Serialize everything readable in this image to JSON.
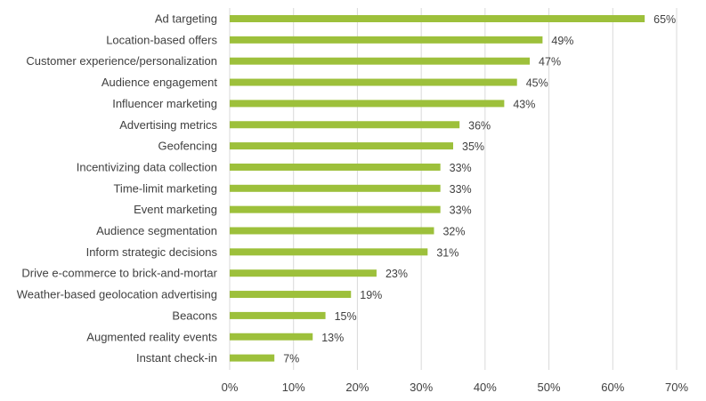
{
  "chart_data": {
    "type": "bar",
    "orientation": "horizontal",
    "title": "",
    "xlabel": "",
    "ylabel": "",
    "categories": [
      "Ad targeting",
      "Location-based offers",
      "Customer experience/personalization",
      "Audience engagement",
      "Influencer marketing",
      "Advertising metrics",
      "Geofencing",
      "Incentivizing data collection",
      "Time-limit marketing",
      "Event marketing",
      "Audience segmentation",
      "Inform strategic decisions",
      "Drive e-commerce to brick-and-mortar",
      "Weather-based geolocation advertising",
      "Beacons",
      "Augmented reality events",
      "Instant check-in"
    ],
    "values": [
      65,
      49,
      47,
      45,
      43,
      36,
      35,
      33,
      33,
      33,
      32,
      31,
      23,
      19,
      15,
      13,
      7
    ],
    "data_labels": [
      "65%",
      "49%",
      "47%",
      "45%",
      "43%",
      "36%",
      "35%",
      "33%",
      "33%",
      "33%",
      "32%",
      "31%",
      "23%",
      "19%",
      "15%",
      "13%",
      "7%"
    ],
    "xlim": [
      0,
      70
    ],
    "xticks": [
      0,
      10,
      20,
      30,
      40,
      50,
      60,
      70
    ],
    "xtick_labels": [
      "0%",
      "10%",
      "20%",
      "30%",
      "40%",
      "50%",
      "60%",
      "70%"
    ],
    "bar_color": "#9DC03B",
    "grid_color": "#D9D9D9",
    "grid": "vertical"
  }
}
